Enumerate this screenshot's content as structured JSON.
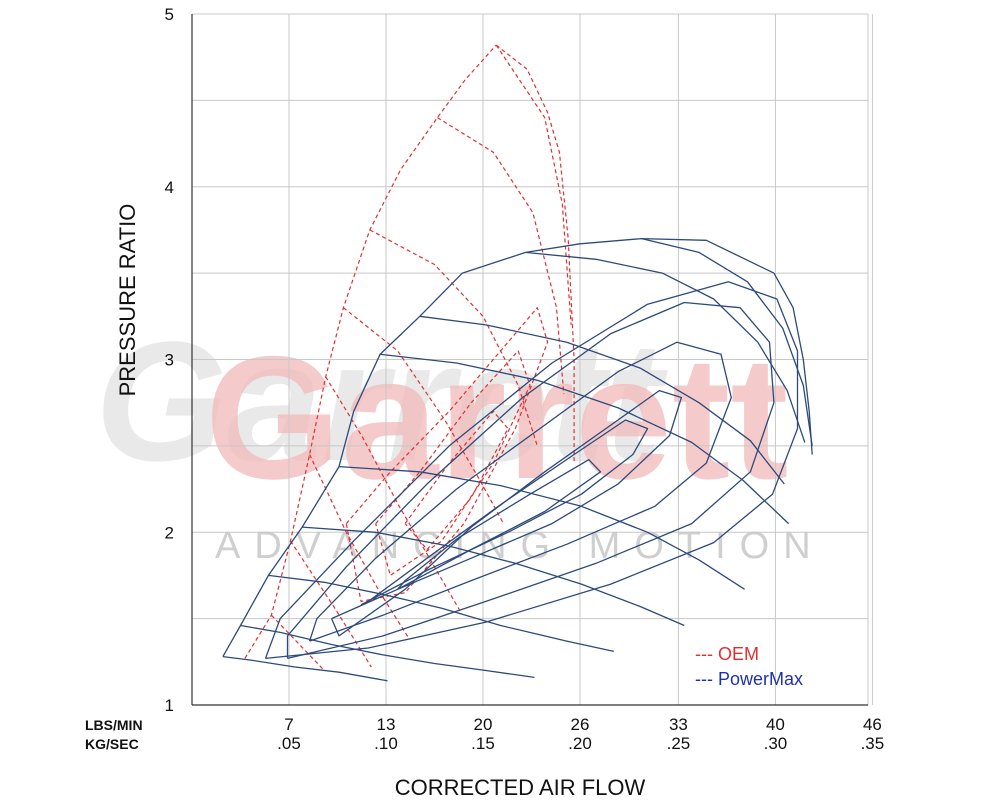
{
  "chart_data": {
    "type": "line",
    "title": "",
    "xlabel": "CORRECTED AIR FLOW",
    "ylabel": "PRESSURE RATIO",
    "x_unit_primary": "LBS/MIN",
    "x_unit_secondary": "KG/SEC",
    "xlim": [
      0,
      46
    ],
    "ylim": [
      1,
      5
    ],
    "x_ticks_primary": [
      "7",
      "13",
      "20",
      "26",
      "33",
      "40",
      "46"
    ],
    "x_ticks_secondary": [
      ".05",
      ".10",
      ".15",
      ".20",
      ".25",
      ".30",
      ".35"
    ],
    "x_tick_values": [
      6.6,
      13.2,
      19.8,
      26.4,
      33.1,
      39.7,
      46.3
    ],
    "y_ticks": [
      1,
      2,
      3,
      4,
      5
    ],
    "grid": true,
    "legend_placement": "bottom-right",
    "watermark": {
      "brand": "Garrett",
      "tagline": "ADVANCING MOTION"
    },
    "series": [
      {
        "name": "OEM",
        "color": "#e03030",
        "dash": "dashed",
        "surge_line": [
          [
            3.6,
            1.27
          ],
          [
            5.4,
            1.52
          ],
          [
            6.7,
            1.95
          ],
          [
            8.0,
            2.45
          ],
          [
            9.1,
            2.9
          ],
          [
            10.3,
            3.3
          ],
          [
            12.1,
            3.75
          ],
          [
            14.2,
            4.1
          ],
          [
            16.7,
            4.4
          ],
          [
            18.6,
            4.62
          ],
          [
            20.7,
            4.82
          ]
        ],
        "choke_line": [
          [
            20.7,
            4.82
          ],
          [
            22.8,
            4.68
          ],
          [
            24.2,
            4.43
          ],
          [
            25.0,
            4.2
          ],
          [
            25.6,
            3.7
          ],
          [
            26.0,
            3.0
          ],
          [
            26.0,
            2.4
          ]
        ],
        "speed_lines": [
          [
            [
              5.4,
              1.52
            ],
            [
              9.0,
              1.2
            ]
          ],
          [
            [
              6.7,
              1.95
            ],
            [
              9.8,
              1.55
            ],
            [
              12.2,
              1.22
            ]
          ],
          [
            [
              8.0,
              2.45
            ],
            [
              10.5,
              2.0
            ],
            [
              12.8,
              1.65
            ],
            [
              14.8,
              1.38
            ]
          ],
          [
            [
              9.1,
              2.9
            ],
            [
              11.6,
              2.55
            ],
            [
              14.1,
              2.15
            ],
            [
              16.5,
              1.8
            ],
            [
              18.2,
              1.55
            ]
          ],
          [
            [
              10.3,
              3.3
            ],
            [
              14.0,
              3.05
            ],
            [
              17.2,
              2.65
            ],
            [
              19.6,
              2.3
            ],
            [
              21.2,
              2.05
            ]
          ],
          [
            [
              12.1,
              3.75
            ],
            [
              16.5,
              3.55
            ],
            [
              19.8,
              3.25
            ],
            [
              22.2,
              2.85
            ],
            [
              23.5,
              2.5
            ]
          ],
          [
            [
              16.7,
              4.4
            ],
            [
              20.5,
              4.2
            ],
            [
              23.2,
              3.85
            ],
            [
              24.8,
              3.3
            ],
            [
              25.3,
              2.8
            ]
          ],
          [
            [
              20.7,
              4.82
            ],
            [
              24.0,
              4.4
            ],
            [
              25.2,
              3.9
            ],
            [
              25.8,
              3.2
            ]
          ]
        ],
        "efficiency_islands": [
          [
            [
              10.5,
              2.05
            ],
            [
              13.5,
              2.35
            ],
            [
              17.5,
              2.7
            ],
            [
              21.0,
              3.05
            ],
            [
              23.5,
              3.3
            ],
            [
              24.2,
              3.1
            ],
            [
              22.0,
              2.6
            ],
            [
              18.5,
              2.05
            ],
            [
              14.5,
              1.65
            ],
            [
              11.5,
              1.6
            ],
            [
              10.5,
              2.05
            ]
          ],
          [
            [
              12.5,
              2.05
            ],
            [
              15.5,
              2.35
            ],
            [
              19.0,
              2.75
            ],
            [
              22.2,
              3.05
            ],
            [
              23.0,
              2.85
            ],
            [
              20.5,
              2.4
            ],
            [
              17.0,
              1.95
            ],
            [
              13.5,
              1.75
            ],
            [
              12.5,
              2.05
            ]
          ],
          [
            [
              14.5,
              2.05
            ],
            [
              17.5,
              2.4
            ],
            [
              20.5,
              2.7
            ],
            [
              21.5,
              2.6
            ],
            [
              19.0,
              2.2
            ],
            [
              16.0,
              1.9
            ],
            [
              14.5,
              2.05
            ]
          ]
        ]
      },
      {
        "name": "PowerMax",
        "color": "#2c4a7a",
        "dash": "solid",
        "surge_line": [
          [
            2.1,
            1.28
          ],
          [
            3.3,
            1.46
          ],
          [
            5.2,
            1.75
          ],
          [
            7.5,
            2.03
          ],
          [
            10.0,
            2.38
          ],
          [
            11.0,
            2.7
          ],
          [
            12.8,
            3.03
          ],
          [
            15.5,
            3.25
          ],
          [
            18.4,
            3.5
          ],
          [
            22.7,
            3.62
          ],
          [
            26.4,
            3.67
          ],
          [
            30.6,
            3.7
          ],
          [
            35.0,
            3.69
          ],
          [
            39.6,
            3.5
          ]
        ],
        "choke_line": [
          [
            39.6,
            3.5
          ],
          [
            40.9,
            3.3
          ],
          [
            41.6,
            3.0
          ],
          [
            42.0,
            2.7
          ],
          [
            42.2,
            2.45
          ]
        ],
        "speed_lines": [
          [
            [
              2.1,
              1.28
            ],
            [
              4.0,
              1.26
            ],
            [
              7.0,
              1.22
            ],
            [
              10.0,
              1.19
            ],
            [
              13.3,
              1.14
            ]
          ],
          [
            [
              3.3,
              1.46
            ],
            [
              6.0,
              1.42
            ],
            [
              9.5,
              1.35
            ],
            [
              13.0,
              1.29
            ],
            [
              16.5,
              1.24
            ],
            [
              20.0,
              1.2
            ],
            [
              23.3,
              1.16
            ]
          ],
          [
            [
              5.2,
              1.75
            ],
            [
              9.0,
              1.71
            ],
            [
              13.0,
              1.64
            ],
            [
              17.0,
              1.56
            ],
            [
              21.0,
              1.46
            ],
            [
              25.5,
              1.37
            ],
            [
              28.7,
              1.31
            ]
          ],
          [
            [
              7.5,
              2.03
            ],
            [
              12.5,
              2.0
            ],
            [
              17.5,
              1.92
            ],
            [
              22.0,
              1.82
            ],
            [
              26.5,
              1.7
            ],
            [
              30.5,
              1.57
            ],
            [
              33.5,
              1.46
            ]
          ],
          [
            [
              10.0,
              2.38
            ],
            [
              15.5,
              2.35
            ],
            [
              21.0,
              2.27
            ],
            [
              26.5,
              2.15
            ],
            [
              31.0,
              2.0
            ],
            [
              34.5,
              1.84
            ],
            [
              37.6,
              1.67
            ]
          ],
          [
            [
              12.8,
              3.03
            ],
            [
              18.0,
              2.98
            ],
            [
              23.5,
              2.88
            ],
            [
              29.0,
              2.72
            ],
            [
              34.0,
              2.52
            ],
            [
              37.5,
              2.3
            ],
            [
              40.6,
              2.05
            ]
          ],
          [
            [
              15.5,
              3.25
            ],
            [
              20.0,
              3.2
            ],
            [
              25.5,
              3.1
            ],
            [
              30.5,
              2.95
            ],
            [
              34.5,
              2.75
            ],
            [
              38.0,
              2.53
            ],
            [
              40.3,
              2.28
            ]
          ],
          [
            [
              22.7,
              3.62
            ],
            [
              27.5,
              3.58
            ],
            [
              32.0,
              3.5
            ],
            [
              35.5,
              3.35
            ],
            [
              38.5,
              3.1
            ],
            [
              40.5,
              2.82
            ],
            [
              41.7,
              2.52
            ]
          ],
          [
            [
              30.6,
              3.7
            ],
            [
              34.5,
              3.62
            ],
            [
              37.8,
              3.45
            ],
            [
              40.2,
              3.18
            ],
            [
              41.6,
              2.85
            ],
            [
              42.2,
              2.5
            ]
          ]
        ],
        "efficiency_islands": [
          [
            [
              9.5,
              1.5
            ],
            [
              14.0,
              1.67
            ],
            [
              19.0,
              1.85
            ],
            [
              24.5,
              2.05
            ],
            [
              29.0,
              2.28
            ],
            [
              32.5,
              2.56
            ],
            [
              33.3,
              2.78
            ],
            [
              31.8,
              2.82
            ],
            [
              28.5,
              2.62
            ],
            [
              24.0,
              2.35
            ],
            [
              19.0,
              2.03
            ],
            [
              14.5,
              1.67
            ],
            [
              10.0,
              1.4
            ],
            [
              9.5,
              1.5
            ]
          ],
          [
            [
              11.5,
              1.58
            ],
            [
              16.0,
              1.78
            ],
            [
              21.5,
              2.0
            ],
            [
              26.5,
              2.22
            ],
            [
              30.0,
              2.45
            ],
            [
              31.0,
              2.6
            ],
            [
              29.5,
              2.65
            ],
            [
              26.0,
              2.45
            ],
            [
              21.0,
              2.16
            ],
            [
              16.0,
              1.85
            ],
            [
              12.0,
              1.6
            ],
            [
              11.5,
              1.58
            ]
          ],
          [
            [
              14.0,
              1.67
            ],
            [
              19.0,
              1.9
            ],
            [
              24.0,
              2.12
            ],
            [
              27.8,
              2.35
            ],
            [
              27.0,
              2.42
            ],
            [
              23.0,
              2.22
            ],
            [
              18.0,
              1.96
            ],
            [
              14.5,
              1.72
            ],
            [
              14.0,
              1.67
            ]
          ],
          [
            [
              8.0,
              1.37
            ],
            [
              13.0,
              1.52
            ],
            [
              19.0,
              1.72
            ],
            [
              25.5,
              1.93
            ],
            [
              31.5,
              2.15
            ],
            [
              35.0,
              2.4
            ],
            [
              36.7,
              2.78
            ],
            [
              36.0,
              3.03
            ],
            [
              33.0,
              3.1
            ],
            [
              29.0,
              2.93
            ],
            [
              24.0,
              2.62
            ],
            [
              18.0,
              2.25
            ],
            [
              12.5,
              1.85
            ],
            [
              8.5,
              1.5
            ],
            [
              8.0,
              1.37
            ]
          ],
          [
            [
              6.5,
              1.27
            ],
            [
              13.0,
              1.4
            ],
            [
              20.0,
              1.6
            ],
            [
              27.5,
              1.82
            ],
            [
              34.0,
              2.05
            ],
            [
              38.0,
              2.35
            ],
            [
              39.6,
              2.75
            ],
            [
              39.3,
              3.1
            ],
            [
              37.3,
              3.3
            ],
            [
              33.5,
              3.33
            ],
            [
              28.5,
              3.15
            ],
            [
              22.5,
              2.78
            ],
            [
              16.0,
              2.28
            ],
            [
              10.5,
              1.8
            ],
            [
              6.5,
              1.4
            ],
            [
              6.5,
              1.27
            ]
          ],
          [
            [
              5.0,
              1.27
            ],
            [
              12.0,
              1.33
            ],
            [
              20.0,
              1.48
            ],
            [
              28.5,
              1.7
            ],
            [
              35.5,
              1.94
            ],
            [
              39.5,
              2.22
            ],
            [
              41.2,
              2.6
            ],
            [
              41.2,
              3.05
            ],
            [
              39.8,
              3.35
            ],
            [
              36.5,
              3.45
            ],
            [
              31.0,
              3.32
            ],
            [
              24.5,
              2.98
            ],
            [
              17.5,
              2.5
            ],
            [
              11.0,
              1.95
            ],
            [
              6.0,
              1.5
            ],
            [
              5.0,
              1.27
            ]
          ]
        ]
      }
    ]
  }
}
